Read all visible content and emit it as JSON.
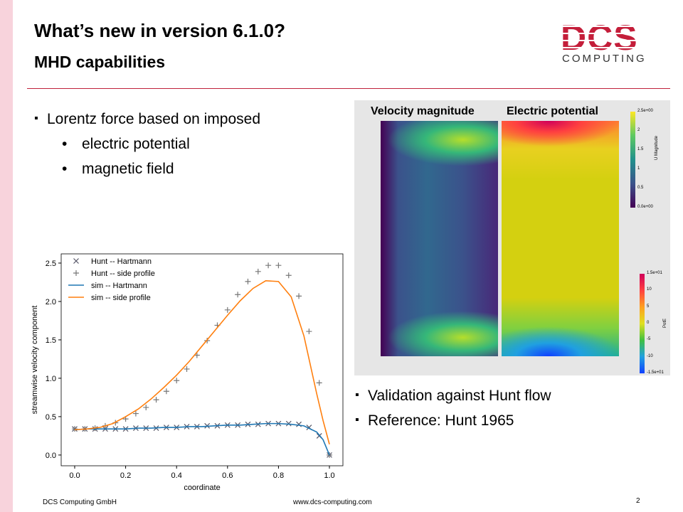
{
  "header": {
    "title": "What’s new in version 6.1.0?",
    "subtitle": "MHD capabilities"
  },
  "logo": {
    "text": "DCS",
    "subtext": "COMPUTING"
  },
  "bullets": [
    {
      "text": "Lorentz force based on imposed",
      "sub": [
        "electric potential",
        "magnetic field"
      ]
    }
  ],
  "bullets2": [
    "Validation against Hunt flow",
    "Reference: Hunt 1965"
  ],
  "figure": {
    "labels": [
      "Velocity magnitude",
      "Electric potential"
    ],
    "colorbar1": {
      "title": "U Magnitude",
      "ticks": [
        "2.5e+00",
        "2",
        "1.5",
        "1",
        "0.5",
        "0.0e+00"
      ]
    },
    "colorbar2": {
      "title": "PotE",
      "ticks": [
        "1.5e+01",
        "10",
        "5",
        "0",
        "-5",
        "-10",
        "-1.5e+01"
      ]
    }
  },
  "chart_data": {
    "type": "line",
    "xlabel": "coordinate",
    "ylabel": "streamwise velocity component",
    "xlim": [
      -0.053,
      1.053
    ],
    "ylim": [
      -0.14,
      2.62
    ],
    "xticks": [
      {
        "value": 0,
        "label": "0.0"
      },
      {
        "value": 0.2,
        "label": "0.2"
      },
      {
        "value": 0.4,
        "label": "0.4"
      },
      {
        "value": 0.6,
        "label": "0.6"
      },
      {
        "value": 0.8,
        "label": "0.8"
      },
      {
        "value": 1,
        "label": "1.0"
      }
    ],
    "yticks": [
      {
        "value": 0,
        "label": "0.0"
      },
      {
        "value": 0.5,
        "label": "0.5"
      },
      {
        "value": 1,
        "label": "1.0"
      },
      {
        "value": 1.5,
        "label": "1.5"
      },
      {
        "value": 2,
        "label": "2.0"
      },
      {
        "value": 2.5,
        "label": "2.5"
      }
    ],
    "legend": "upper left",
    "series": [
      {
        "name": "Hunt -- Hartmann",
        "color": "#555566",
        "marker": "x",
        "x": [
          0,
          0.04,
          0.08,
          0.12,
          0.16,
          0.2,
          0.24,
          0.28,
          0.32,
          0.36,
          0.4,
          0.44,
          0.48,
          0.52,
          0.56,
          0.6,
          0.64,
          0.68,
          0.72,
          0.76,
          0.8,
          0.84,
          0.88,
          0.92,
          0.96,
          1
        ],
        "values": [
          0.34,
          0.34,
          0.34,
          0.34,
          0.34,
          0.34,
          0.35,
          0.35,
          0.35,
          0.36,
          0.36,
          0.37,
          0.37,
          0.38,
          0.38,
          0.39,
          0.39,
          0.4,
          0.4,
          0.41,
          0.41,
          0.41,
          0.4,
          0.36,
          0.25,
          0.0
        ]
      },
      {
        "name": "Hunt -- side profile",
        "color": "#777777",
        "marker": "+",
        "x": [
          0,
          0.04,
          0.08,
          0.12,
          0.16,
          0.2,
          0.24,
          0.28,
          0.32,
          0.36,
          0.4,
          0.44,
          0.48,
          0.52,
          0.56,
          0.6,
          0.64,
          0.68,
          0.72,
          0.76,
          0.8,
          0.84,
          0.88,
          0.92,
          0.96,
          1
        ],
        "values": [
          0.34,
          0.34,
          0.35,
          0.38,
          0.42,
          0.47,
          0.54,
          0.62,
          0.72,
          0.83,
          0.97,
          1.12,
          1.3,
          1.49,
          1.69,
          1.89,
          2.09,
          2.26,
          2.39,
          2.47,
          2.47,
          2.34,
          2.07,
          1.61,
          0.94,
          0.0
        ]
      },
      {
        "name": "sim -- Hartmann",
        "color": "#1f77b4",
        "marker": "none",
        "x": [
          0,
          0.05,
          0.1,
          0.15,
          0.2,
          0.25,
          0.3,
          0.35,
          0.4,
          0.45,
          0.5,
          0.55,
          0.6,
          0.65,
          0.7,
          0.75,
          0.8,
          0.85,
          0.9,
          0.95,
          0.975,
          1
        ],
        "values": [
          0.33,
          0.34,
          0.34,
          0.34,
          0.34,
          0.35,
          0.35,
          0.36,
          0.36,
          0.37,
          0.37,
          0.38,
          0.39,
          0.39,
          0.4,
          0.41,
          0.41,
          0.4,
          0.38,
          0.3,
          0.2,
          0.0
        ]
      },
      {
        "name": "sim -- side profile",
        "color": "#ff7f0e",
        "marker": "none",
        "x": [
          0,
          0.05,
          0.1,
          0.15,
          0.2,
          0.25,
          0.3,
          0.35,
          0.4,
          0.45,
          0.5,
          0.55,
          0.6,
          0.65,
          0.7,
          0.75,
          0.8,
          0.85,
          0.9,
          0.95,
          0.975,
          1
        ],
        "values": [
          0.33,
          0.34,
          0.36,
          0.41,
          0.5,
          0.6,
          0.73,
          0.88,
          1.04,
          1.22,
          1.42,
          1.62,
          1.82,
          2.01,
          2.17,
          2.27,
          2.26,
          2.06,
          1.55,
          0.8,
          0.45,
          0.14
        ]
      }
    ]
  },
  "footer": {
    "company": "DCS Computing GmbH",
    "url": "www.dcs-computing.com",
    "page": "2"
  }
}
